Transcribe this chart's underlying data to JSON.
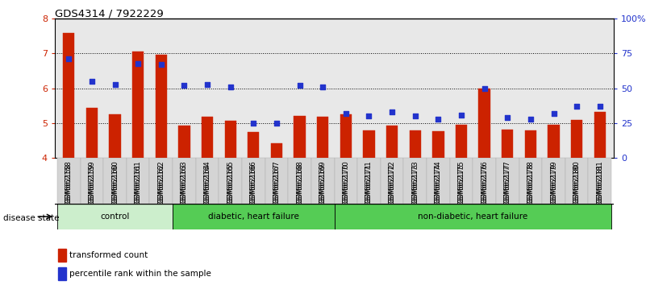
{
  "title": "GDS4314 / 7922229",
  "samples": [
    "GSM662158",
    "GSM662159",
    "GSM662160",
    "GSM662161",
    "GSM662162",
    "GSM662163",
    "GSM662164",
    "GSM662165",
    "GSM662166",
    "GSM662167",
    "GSM662168",
    "GSM662169",
    "GSM662170",
    "GSM662171",
    "GSM662172",
    "GSM662173",
    "GSM662174",
    "GSM662175",
    "GSM662176",
    "GSM662177",
    "GSM662178",
    "GSM662179",
    "GSM662180",
    "GSM662181"
  ],
  "red_values": [
    7.58,
    5.45,
    5.25,
    7.05,
    6.97,
    4.93,
    5.18,
    5.08,
    4.75,
    4.42,
    5.22,
    5.18,
    5.26,
    4.8,
    4.93,
    4.8,
    4.78,
    4.95,
    6.0,
    4.82,
    4.8,
    4.95,
    5.1,
    5.32
  ],
  "blue_values": [
    71,
    55,
    53,
    68,
    67,
    52,
    53,
    51,
    25,
    25,
    52,
    51,
    32,
    30,
    33,
    30,
    28,
    31,
    50,
    29,
    28,
    32,
    37,
    37
  ],
  "ylim_left": [
    4,
    8
  ],
  "ylim_right": [
    0,
    100
  ],
  "yticks_left": [
    4,
    5,
    6,
    7,
    8
  ],
  "yticks_right": [
    0,
    25,
    50,
    75,
    100
  ],
  "ytick_labels_right": [
    "0",
    "25",
    "50",
    "75",
    "100%"
  ],
  "red_color": "#cc2200",
  "blue_color": "#2233cc",
  "bg_color": "#e8e8e8",
  "group_ranges": [
    {
      "start": 0,
      "end": 4,
      "label": "control",
      "color": "#cceecc"
    },
    {
      "start": 5,
      "end": 11,
      "label": "diabetic, heart failure",
      "color": "#55cc55"
    },
    {
      "start": 12,
      "end": 23,
      "label": "non-diabetic, heart failure",
      "color": "#55cc55"
    }
  ]
}
